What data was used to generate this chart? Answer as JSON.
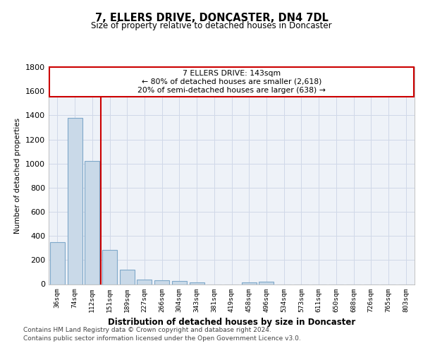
{
  "title": "7, ELLERS DRIVE, DONCASTER, DN4 7DL",
  "subtitle": "Size of property relative to detached houses in Doncaster",
  "xlabel": "Distribution of detached houses by size in Doncaster",
  "ylabel": "Number of detached properties",
  "bar_labels": [
    "36sqm",
    "74sqm",
    "112sqm",
    "151sqm",
    "189sqm",
    "227sqm",
    "266sqm",
    "304sqm",
    "343sqm",
    "381sqm",
    "419sqm",
    "458sqm",
    "496sqm",
    "534sqm",
    "573sqm",
    "611sqm",
    "650sqm",
    "688sqm",
    "726sqm",
    "765sqm",
    "803sqm"
  ],
  "bar_values": [
    350,
    1380,
    1020,
    285,
    120,
    38,
    35,
    25,
    15,
    0,
    0,
    15,
    20,
    0,
    0,
    0,
    0,
    0,
    0,
    0,
    0
  ],
  "bar_color": "#c9d9e8",
  "bar_edge_color": "#7fa8c9",
  "red_line_x": 2.5,
  "annotation_line1": "7 ELLERS DRIVE: 143sqm",
  "annotation_line2": "← 80% of detached houses are smaller (2,618)",
  "annotation_line3": "20% of semi-detached houses are larger (638) →",
  "annotation_box_edge_color": "#cc0000",
  "ylim_max": 1800,
  "yticks": [
    0,
    200,
    400,
    600,
    800,
    1000,
    1200,
    1400,
    1600,
    1800
  ],
  "grid_color": "#d0d8e8",
  "background_color": "#eef2f8",
  "footer1": "Contains HM Land Registry data © Crown copyright and database right 2024.",
  "footer2": "Contains public sector information licensed under the Open Government Licence v3.0."
}
